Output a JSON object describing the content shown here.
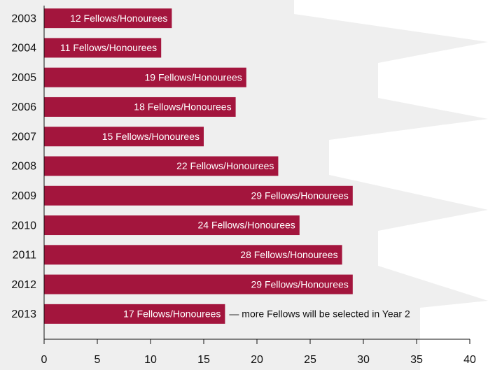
{
  "chart_data": {
    "type": "barh",
    "categories": [
      "2003",
      "2004",
      "2005",
      "2006",
      "2007",
      "2008",
      "2009",
      "2010",
      "2011",
      "2012",
      "2013"
    ],
    "values": [
      12,
      11,
      19,
      18,
      15,
      22,
      29,
      24,
      28,
      29,
      17
    ],
    "value_labels": [
      "12 Fellows/Honourees",
      "11 Fellows/Honourees",
      "19 Fellows/Honourees",
      "18 Fellows/Honourees",
      "15 Fellows/Honourees",
      "22 Fellows/Honourees",
      "29 Fellows/Honourees",
      "24 Fellows/Honourees",
      "28 Fellows/Honourees",
      "29 Fellows/Honourees",
      "17 Fellows/Honourees"
    ],
    "annotation": "— more Fellows will be selected in Year 2",
    "color": "#a3153d",
    "xlim": [
      0,
      40
    ],
    "xticks": [
      0,
      5,
      10,
      15,
      20,
      25,
      30,
      35,
      40
    ]
  }
}
